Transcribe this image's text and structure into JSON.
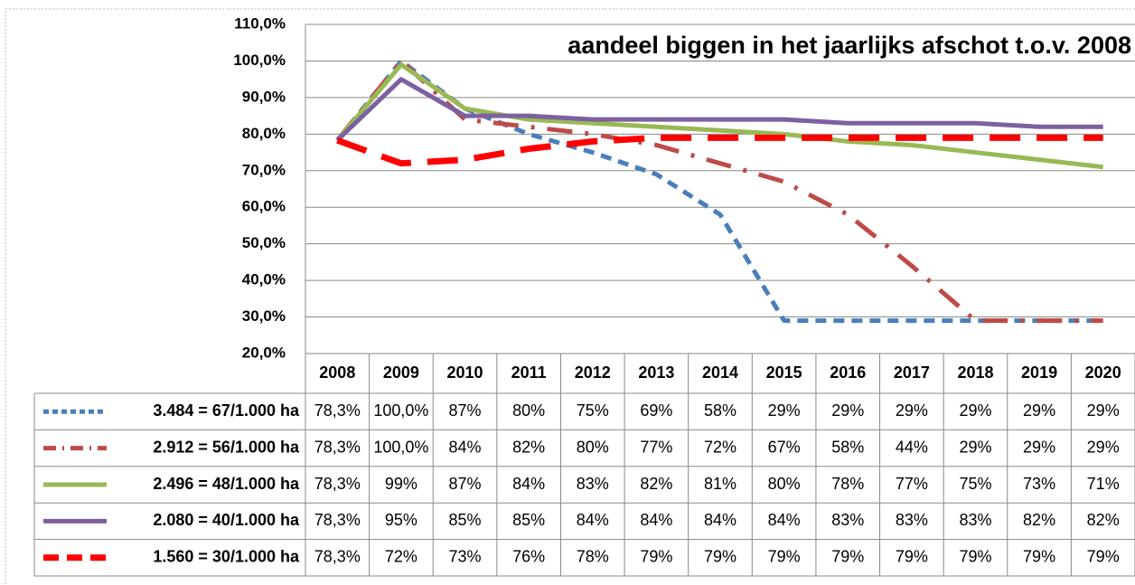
{
  "chart_data": {
    "type": "line",
    "title": "aandeel biggen in het jaarlijks afschot t.o.v. 2008",
    "categories": [
      "2008",
      "2009",
      "2010",
      "2011",
      "2012",
      "2013",
      "2014",
      "2015",
      "2016",
      "2017",
      "2018",
      "2019",
      "2020"
    ],
    "ylim": [
      20,
      110
    ],
    "yticks": [
      {
        "value": 20,
        "label": "20,0%"
      },
      {
        "value": 30,
        "label": "30,0%"
      },
      {
        "value": 40,
        "label": "40,0%"
      },
      {
        "value": 50,
        "label": "50,0%"
      },
      {
        "value": 60,
        "label": "60,0%"
      },
      {
        "value": 70,
        "label": "70,0%"
      },
      {
        "value": 80,
        "label": "80,0%"
      },
      {
        "value": 90,
        "label": "90,0%"
      },
      {
        "value": 100,
        "label": "100,0%"
      },
      {
        "value": 110,
        "label": "110,0%"
      }
    ],
    "grid": true,
    "series": [
      {
        "name": "3.484 = 67/1.000 ha",
        "color": "#4a7ebb",
        "dash": "12 8",
        "width": 5,
        "values": [
          78.3,
          100,
          87,
          80,
          75,
          69,
          58,
          29,
          29,
          29,
          29,
          29,
          29
        ],
        "value_labels": [
          "78,3%",
          "100,0%",
          "87%",
          "80%",
          "75%",
          "69%",
          "58%",
          "29%",
          "29%",
          "29%",
          "29%",
          "29%",
          "29%"
        ]
      },
      {
        "name": "2.912 = 56/1.000 ha",
        "color": "#be4b48",
        "dash": "28 14 4 14",
        "width": 5,
        "values": [
          78.3,
          100,
          84,
          82,
          80,
          77,
          72,
          67,
          58,
          44,
          29,
          29,
          29
        ],
        "value_labels": [
          "78,3%",
          "100,0%",
          "84%",
          "82%",
          "80%",
          "77%",
          "72%",
          "67%",
          "58%",
          "44%",
          "29%",
          "29%",
          "29%"
        ]
      },
      {
        "name": "2.496 = 48/1.000 ha",
        "color": "#98b954",
        "dash": "none",
        "width": 5,
        "values": [
          78.3,
          99,
          87,
          84,
          83,
          82,
          81,
          80,
          78,
          77,
          75,
          73,
          71
        ],
        "value_labels": [
          "78,3%",
          "99%",
          "87%",
          "84%",
          "83%",
          "82%",
          "81%",
          "80%",
          "78%",
          "77%",
          "75%",
          "73%",
          "71%"
        ]
      },
      {
        "name": "2.080 = 40/1.000 ha",
        "color": "#7d60a0",
        "dash": "none",
        "width": 5,
        "values": [
          78.3,
          95,
          85,
          85,
          84,
          84,
          84,
          84,
          83,
          83,
          83,
          82,
          82
        ],
        "value_labels": [
          "78,3%",
          "95%",
          "85%",
          "85%",
          "84%",
          "84%",
          "84%",
          "84%",
          "83%",
          "83%",
          "83%",
          "82%",
          "82%"
        ]
      },
      {
        "name": "1.560 = 30/1.000 ha",
        "color": "#ff0000",
        "dash": "34 18",
        "width": 7,
        "values": [
          78.3,
          72,
          73,
          76,
          78,
          79,
          79,
          79,
          79,
          79,
          79,
          79,
          79
        ],
        "value_labels": [
          "78,3%",
          "72%",
          "73%",
          "76%",
          "78%",
          "79%",
          "79%",
          "79%",
          "79%",
          "79%",
          "79%",
          "79%",
          "79%"
        ]
      }
    ]
  }
}
